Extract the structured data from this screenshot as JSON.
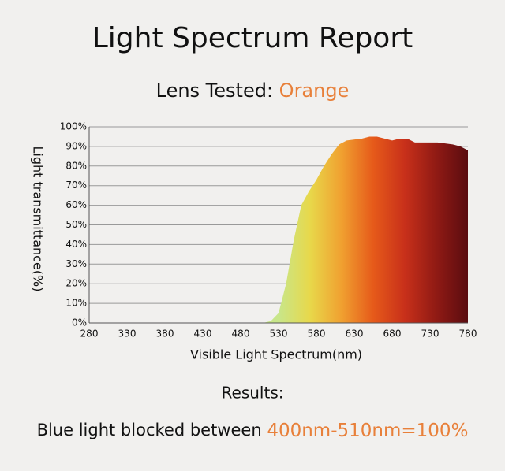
{
  "chart_data": {
    "type": "area",
    "title": "Light Spectrum Report",
    "subtitle": {
      "label": "Lens Tested:",
      "lens": "Orange",
      "lens_color": "#e8803a"
    },
    "xlabel": "Visible Light Spectrum(nm)",
    "ylabel": "Light transmittance(%)",
    "x": [
      280,
      500,
      510,
      520,
      530,
      540,
      550,
      560,
      570,
      580,
      590,
      600,
      610,
      620,
      640,
      650,
      660,
      680,
      690,
      700,
      710,
      740,
      760,
      770,
      780
    ],
    "values": [
      0,
      0,
      0,
      1,
      5,
      20,
      42,
      60,
      67,
      73,
      80,
      86,
      91,
      93,
      94,
      95,
      95,
      93,
      94,
      94,
      92,
      92,
      91,
      90,
      88
    ],
    "colors": [
      "#c8e68a",
      "#e8d84a",
      "#f0a030",
      "#e65a1a",
      "#c8301a",
      "#901a14",
      "#5a0c10"
    ],
    "xlim": [
      280,
      780
    ],
    "xticks": [
      280,
      330,
      380,
      430,
      480,
      530,
      580,
      630,
      680,
      730,
      780
    ],
    "ylim": [
      0,
      100
    ],
    "yticks": [
      {
        "value": 0,
        "label": "0%"
      },
      {
        "value": 10,
        "label": "10%"
      },
      {
        "value": 20,
        "label": "20%"
      },
      {
        "value": 30,
        "label": "30%"
      },
      {
        "value": 40,
        "label": "40%"
      },
      {
        "value": 50,
        "label": "50%"
      },
      {
        "value": 60,
        "label": "60%"
      },
      {
        "value": 70,
        "label": "70%"
      },
      {
        "value": 80,
        "label": "80%"
      },
      {
        "value": 90,
        "label": "90%"
      },
      {
        "value": 100,
        "label": "100%"
      }
    ],
    "grid": true,
    "annotations": {
      "heading": "Results:",
      "text": "Blue light blocked between",
      "highlight": "400nm-510nm=100%",
      "highlight_color": "#e8803a"
    }
  }
}
